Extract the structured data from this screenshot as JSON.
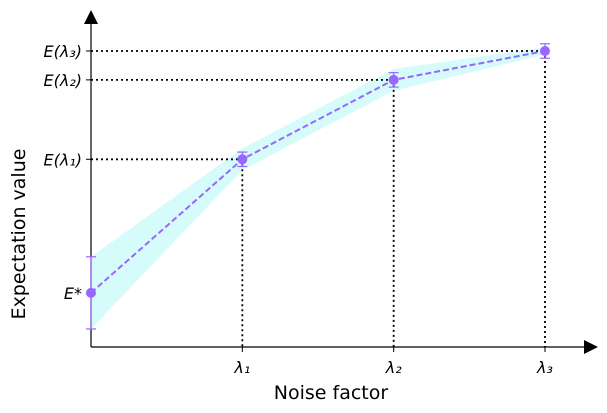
{
  "chart_data": {
    "type": "line",
    "title": "",
    "xlabel": "Noise factor",
    "ylabel": "Expectation value",
    "xlim": [
      0,
      3
    ],
    "ylim": [
      0,
      1.0
    ],
    "x_ticks": [
      {
        "value": 1,
        "label": "λ₁"
      },
      {
        "value": 2,
        "label": "λ₂"
      },
      {
        "value": 3,
        "label": "λ₃"
      }
    ],
    "y_ticks": [
      {
        "value": 0.82,
        "label": "E(λ₃)"
      },
      {
        "value": 0.74,
        "label": "E(λ₂)"
      },
      {
        "value": 0.52,
        "label": "E(λ₁)"
      },
      {
        "value": 0.15,
        "label": "E*"
      }
    ],
    "series": [
      {
        "name": "Expectation value",
        "color": "#9966ff",
        "style": "dashed",
        "x": [
          0,
          1,
          2,
          3
        ],
        "y": [
          0.15,
          0.52,
          0.74,
          0.82
        ],
        "error": [
          0.1,
          0.02,
          0.02,
          0.02
        ]
      }
    ],
    "band": {
      "color": "#d5fbfb",
      "x": [
        0,
        1,
        2,
        3
      ],
      "lower": [
        0.05,
        0.49,
        0.71,
        0.81
      ],
      "upper": [
        0.25,
        0.55,
        0.77,
        0.83
      ]
    },
    "guide_lines": "dotted",
    "grid": false
  }
}
